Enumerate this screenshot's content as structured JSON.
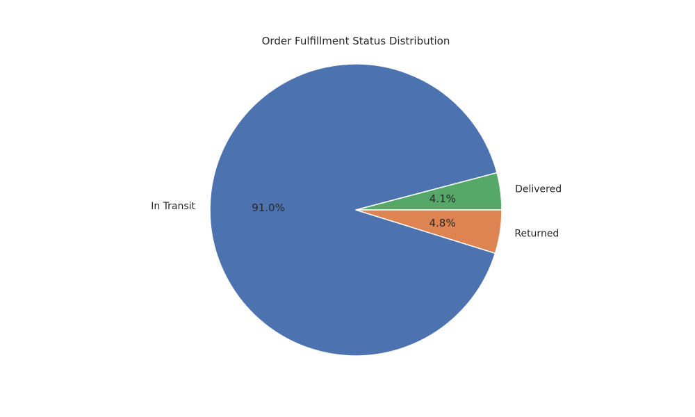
{
  "chart_data": {
    "type": "pie",
    "title": "Order Fulfillment Status Distribution",
    "slices": [
      {
        "label": "Delivered",
        "value": 4.1,
        "pct_label": "4.1%",
        "color": "#55a868"
      },
      {
        "label": "In Transit",
        "value": 91.0,
        "pct_label": "91.0%",
        "color": "#4c72b0"
      },
      {
        "label": "Returned",
        "value": 4.8,
        "pct_label": "4.8%",
        "color": "#dd8452"
      }
    ],
    "start_angle": "0deg (3 o'clock)",
    "direction": "counterclockwise",
    "edge_color": "#ffffff",
    "legend": "none"
  }
}
